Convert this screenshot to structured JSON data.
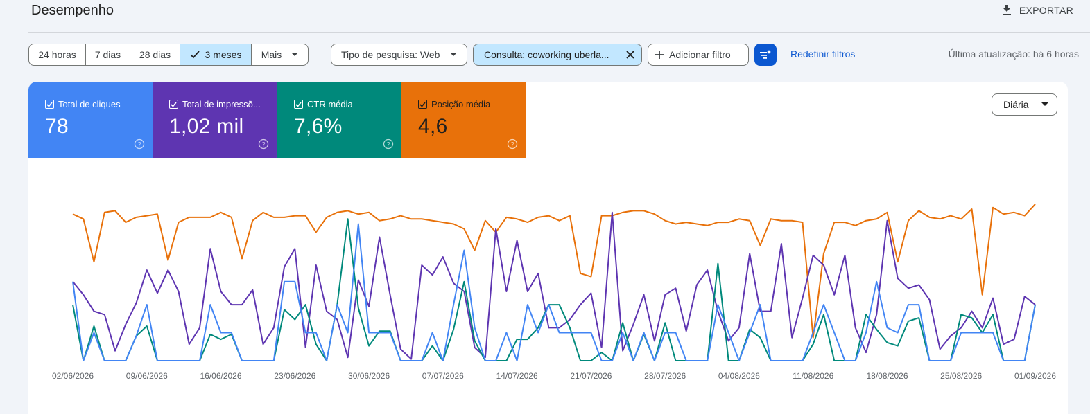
{
  "header": {
    "title": "Desempenho",
    "export_label": "EXPORTAR"
  },
  "date_range": {
    "options": [
      "24 horas",
      "7 dias",
      "28 dias",
      "3 meses",
      "Mais"
    ],
    "selected": "3 meses"
  },
  "filters": {
    "search_type": "Tipo de pesquisa: Web",
    "query": "Consulta: coworking uberla...",
    "add_filter": "Adicionar filtro",
    "reset": "Redefinir filtros"
  },
  "last_update": "Última atualização: há 6 horas",
  "metrics": [
    {
      "label": "Total de cliques",
      "value": "78",
      "color": "#4285f4"
    },
    {
      "label": "Total de impressõ...",
      "value": "1,02 mil",
      "color": "#5e35b1"
    },
    {
      "label": "CTR média",
      "value": "7,6%",
      "color": "#00897b"
    },
    {
      "label": "Posição média",
      "value": "4,6",
      "color": "#e8710a"
    }
  ],
  "granularity": "Diária",
  "chart_data": {
    "type": "line",
    "x_tick_labels": [
      "02/06/2026",
      "09/06/2026",
      "16/06/2026",
      "23/06/2026",
      "30/06/2026",
      "07/07/2026",
      "14/07/2026",
      "21/07/2026",
      "28/07/2026",
      "04/08/2026",
      "11/08/2026",
      "18/08/2026",
      "25/08/2026",
      "01/09/2026"
    ],
    "x_start": "02/06/2026",
    "x_end": "01/09/2026",
    "y_axes": "independent per series, not labeled",
    "series": [
      {
        "name": "Posição média",
        "color": "#e8710a",
        "values": [
          0.89,
          0.86,
          0.6,
          0.9,
          0.91,
          0.84,
          0.87,
          0.88,
          0.89,
          0.61,
          0.84,
          0.87,
          0.87,
          0.87,
          0.9,
          0.87,
          0.62,
          0.85,
          0.9,
          0.87,
          0.87,
          0.88,
          0.88,
          0.78,
          0.87,
          0.9,
          0.91,
          0.89,
          0.9,
          0.85,
          0.86,
          0.88,
          0.86,
          0.86,
          0.85,
          0.84,
          0.83,
          0.8,
          0.67,
          0.85,
          0.78,
          0.87,
          0.86,
          0.84,
          0.87,
          0.88,
          0.85,
          0.88,
          0.53,
          0.51,
          0.88,
          0.88,
          0.9,
          0.91,
          0.91,
          0.89,
          0.85,
          0.83,
          0.84,
          0.83,
          0.82,
          0.84,
          0.84,
          0.86,
          0.85,
          0.7,
          0.86,
          0.85,
          0.85,
          0.84,
          0.14,
          0.65,
          0.84,
          0.84,
          0.82,
          0.85,
          0.86,
          0.9,
          0.6,
          0.85,
          0.91,
          0.87,
          0.86,
          0.88,
          0.86,
          0.92,
          0.4,
          0.93,
          0.89,
          0.9,
          0.88,
          0.95
        ]
      },
      {
        "name": "Total de impressões",
        "color": "#5e35b1",
        "values": [
          0.48,
          0.4,
          0.3,
          0.28,
          0.06,
          0.22,
          0.35,
          0.55,
          0.41,
          0.55,
          0.42,
          0.1,
          0.2,
          0.68,
          0.42,
          0.34,
          0.34,
          0.43,
          0.1,
          0.2,
          0.57,
          0.68,
          0.08,
          0.58,
          0.3,
          0.25,
          0.02,
          0.49,
          0.33,
          0.75,
          0.4,
          0.07,
          0.01,
          0.58,
          0.52,
          0.63,
          0.47,
          0.42,
          0.08,
          0.02,
          0.8,
          0.42,
          0.73,
          0.42,
          0.53,
          0.2,
          0.2,
          0.25,
          0.34,
          0.41,
          0.08,
          0.9,
          0.06,
          0.22,
          0.4,
          0.12,
          0.4,
          0.44,
          0.18,
          0.46,
          0.55,
          0.3,
          0.12,
          0.2,
          0.65,
          0.3,
          0.3,
          0.71,
          0.14,
          0.38,
          0.64,
          0.58,
          0.4,
          0.64,
          0.2,
          0.05,
          0.28,
          0.85,
          0.5,
          0.44,
          0.46,
          0.37,
          0.07,
          0.15,
          0.2,
          0.3,
          0.2,
          0.38,
          0.1,
          0.13,
          0.39,
          0.34
        ]
      },
      {
        "name": "CTR média",
        "color": "#00897b",
        "values": [
          0.34,
          0.0,
          0.21,
          0.0,
          0.0,
          0.0,
          0.15,
          0.21,
          0.0,
          0.0,
          0.0,
          0.0,
          0.0,
          0.16,
          0.13,
          0.16,
          0.0,
          0.0,
          0.0,
          0.0,
          0.31,
          0.25,
          0.34,
          0.1,
          0.0,
          0.34,
          0.86,
          0.32,
          0.09,
          0.18,
          0.18,
          0.0,
          0.0,
          0.0,
          0.09,
          0.0,
          0.19,
          0.48,
          0.12,
          0.0,
          0.0,
          0.0,
          0.13,
          0.13,
          0.2,
          0.34,
          0.34,
          0.2,
          0.0,
          0.0,
          0.05,
          0.0,
          0.23,
          0.0,
          0.16,
          0.0,
          0.23,
          0.0,
          0.0,
          0.0,
          0.0,
          0.59,
          0.0,
          0.0,
          0.19,
          0.14,
          0.0,
          0.0,
          0.0,
          0.0,
          0.1,
          0.28,
          0.0,
          0.0,
          0.0,
          0.28,
          0.19,
          0.11,
          0.09,
          0.24,
          0.26,
          0.0,
          0.0,
          0.0,
          0.28,
          0.26,
          0.17,
          0.28,
          0.0,
          0.0,
          0.0,
          0.34
        ]
      },
      {
        "name": "Total de cliques",
        "color": "#4285f4",
        "values": [
          0.48,
          0.0,
          0.17,
          0.0,
          0.0,
          0.0,
          0.15,
          0.34,
          0.0,
          0.0,
          0.0,
          0.0,
          0.0,
          0.34,
          0.17,
          0.17,
          0.0,
          0.0,
          0.0,
          0.0,
          0.48,
          0.48,
          0.17,
          0.17,
          0.0,
          0.34,
          0.17,
          0.83,
          0.17,
          0.17,
          0.17,
          0.0,
          0.0,
          0.0,
          0.17,
          0.0,
          0.34,
          0.67,
          0.2,
          0.0,
          0.0,
          0.17,
          0.0,
          0.34,
          0.17,
          0.34,
          0.17,
          0.17,
          0.17,
          0.17,
          0.0,
          0.0,
          0.17,
          0.0,
          0.17,
          0.0,
          0.17,
          0.17,
          0.0,
          0.0,
          0.0,
          0.34,
          0.17,
          0.0,
          0.17,
          0.34,
          0.0,
          0.0,
          0.0,
          0.0,
          0.17,
          0.34,
          0.17,
          0.0,
          0.0,
          0.17,
          0.48,
          0.2,
          0.17,
          0.34,
          0.34,
          0.0,
          0.0,
          0.0,
          0.17,
          0.17,
          0.17,
          0.17,
          0.0,
          0.0,
          0.0,
          0.34
        ]
      }
    ]
  }
}
